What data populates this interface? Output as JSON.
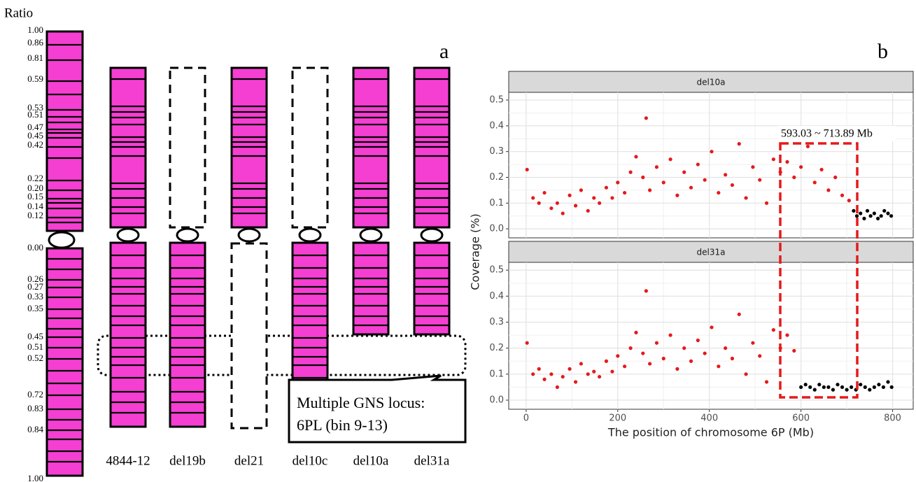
{
  "panel_a": {
    "label": "a",
    "ratio_title": "Ratio",
    "short_arm_ratios": [
      "1.00",
      "0.86",
      "0.81",
      "0.59",
      "0.53",
      "0.51",
      "0.47",
      "0.45",
      "0.42",
      "0.22",
      "0.20",
      "0.15",
      "0.14",
      "0.12"
    ],
    "long_arm_ratios": [
      "0.00",
      "0.26",
      "0.27",
      "0.33",
      "0.35",
      "0.45",
      "0.51",
      "0.52",
      "0.72",
      "0.83",
      "0.84",
      "1.00"
    ],
    "lines": [
      "4844-12",
      "del19b",
      "del21",
      "del10c",
      "del10a",
      "del31a"
    ],
    "locus_note": [
      "Multiple GNS locus:",
      "6PL (bin 9-13)"
    ]
  },
  "chart_data": {
    "type": "scatter",
    "panel_label": "b",
    "xlabel": "The position of chromosome 6P (Mb)",
    "ylabel": "Coverage (%)",
    "annotation": "593.03 ~ 713.89 Mb",
    "xlim": [
      -38,
      845
    ],
    "xticks": [
      0,
      200,
      400,
      600,
      800
    ],
    "ylim": [
      -0.035,
      0.53
    ],
    "yticks": [
      {
        "value": 0,
        "label": "0.0"
      },
      0.1,
      0.2,
      0.3,
      0.4,
      0.5
    ],
    "grid": true,
    "panels": [
      {
        "title": "del10a",
        "series": [
          {
            "color": "#e41a1c",
            "x": [
              2,
              15,
              28,
              40,
              55,
              68,
              80,
              95,
              108,
              120,
              135,
              148,
              160,
              175,
              188,
              200,
              215,
              228,
              240,
              255,
              262,
              270,
              285,
              300,
              315,
              330,
              345,
              360,
              375,
              390,
              405,
              420,
              435,
              450,
              465,
              480,
              495,
              510,
              525,
              540,
              555,
              570,
              585,
              600,
              615,
              630,
              645,
              660,
              675,
              690,
              705
            ],
            "values": [
              0.23,
              0.12,
              0.1,
              0.14,
              0.08,
              0.1,
              0.06,
              0.13,
              0.09,
              0.15,
              0.07,
              0.12,
              0.1,
              0.16,
              0.12,
              0.18,
              0.14,
              0.22,
              0.28,
              0.2,
              0.43,
              0.15,
              0.24,
              0.18,
              0.27,
              0.13,
              0.22,
              0.16,
              0.25,
              0.19,
              0.3,
              0.14,
              0.21,
              0.17,
              0.33,
              0.12,
              0.24,
              0.19,
              0.1,
              0.27,
              0.22,
              0.26,
              0.2,
              0.24,
              0.32,
              0.18,
              0.23,
              0.15,
              0.2,
              0.13,
              0.11
            ]
          },
          {
            "color": "#000000",
            "x": [
              715,
              722,
              730,
              738,
              745,
              752,
              760,
              768,
              775,
              782,
              790,
              797
            ],
            "values": [
              0.07,
              0.05,
              0.06,
              0.04,
              0.07,
              0.05,
              0.06,
              0.04,
              0.05,
              0.07,
              0.06,
              0.05
            ]
          }
        ]
      },
      {
        "title": "del31a",
        "series": [
          {
            "color": "#e41a1c",
            "x": [
              2,
              15,
              28,
              40,
              55,
              68,
              80,
              95,
              108,
              120,
              135,
              148,
              160,
              175,
              188,
              200,
              215,
              228,
              240,
              255,
              262,
              270,
              285,
              300,
              315,
              330,
              345,
              360,
              375,
              390,
              405,
              420,
              435,
              450,
              465,
              480,
              495,
              510,
              525,
              540,
              555,
              570,
              585
            ],
            "values": [
              0.22,
              0.1,
              0.12,
              0.08,
              0.1,
              0.05,
              0.09,
              0.12,
              0.07,
              0.14,
              0.1,
              0.11,
              0.09,
              0.15,
              0.11,
              0.17,
              0.13,
              0.2,
              0.26,
              0.18,
              0.42,
              0.14,
              0.22,
              0.16,
              0.25,
              0.12,
              0.2,
              0.15,
              0.23,
              0.18,
              0.28,
              0.13,
              0.2,
              0.16,
              0.33,
              0.1,
              0.22,
              0.17,
              0.07,
              0.27,
              0.2,
              0.25,
              0.19
            ]
          },
          {
            "color": "#000000",
            "x": [
              600,
              610,
              620,
              630,
              640,
              650,
              660,
              670,
              680,
              690,
              700,
              710,
              720,
              730,
              740,
              750,
              760,
              770,
              780,
              790,
              798
            ],
            "values": [
              0.05,
              0.06,
              0.05,
              0.04,
              0.06,
              0.05,
              0.05,
              0.04,
              0.06,
              0.05,
              0.04,
              0.05,
              0.04,
              0.06,
              0.05,
              0.04,
              0.05,
              0.06,
              0.05,
              0.07,
              0.05
            ]
          }
        ]
      }
    ]
  }
}
